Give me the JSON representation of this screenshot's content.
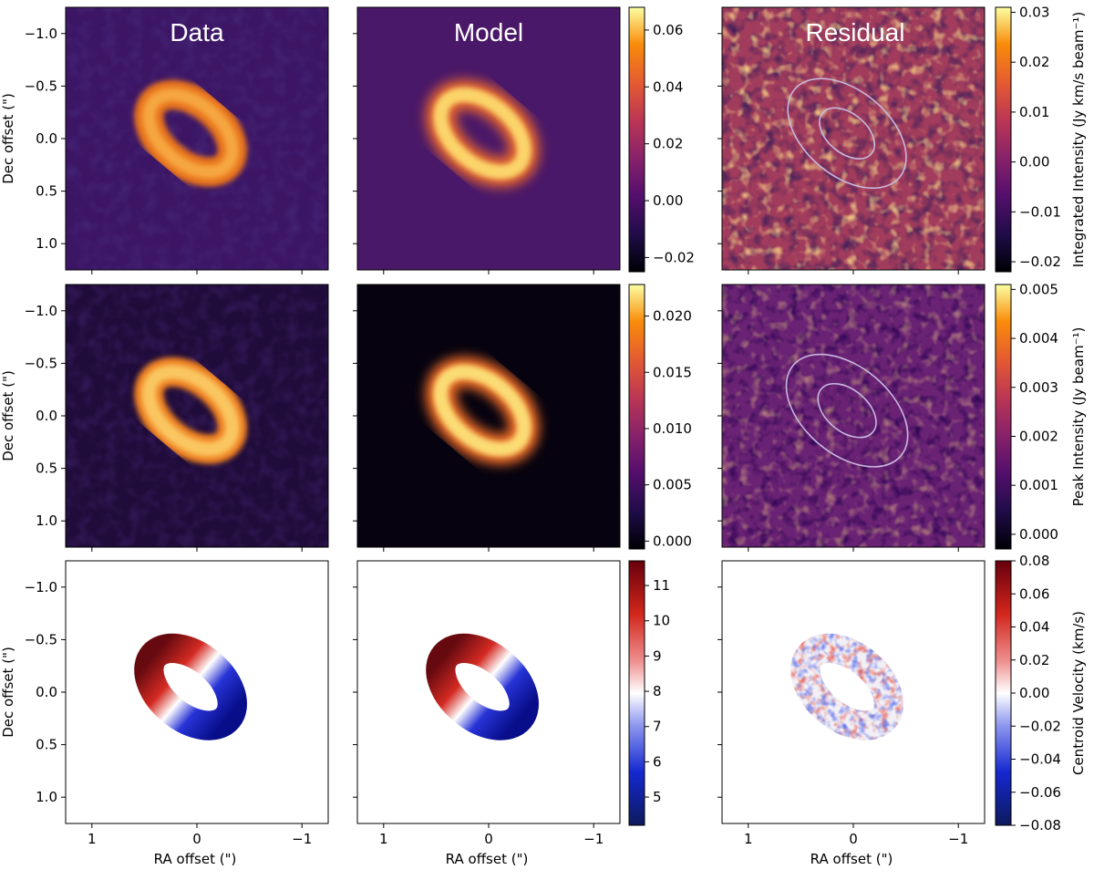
{
  "chart_data": {
    "type": "heatmap",
    "columns": [
      "Data",
      "Model",
      "Residual"
    ],
    "xlabel": "RA offset (\")",
    "ylabel": "Dec offset (\")",
    "xlim": [
      1.25,
      -1.25
    ],
    "ylim": [
      -1.25,
      1.25
    ],
    "xticks": [
      1,
      0,
      -1
    ],
    "xtick_labels": [
      "1",
      "0",
      "−1"
    ],
    "yticks": [
      -1.0,
      -0.5,
      0.0,
      0.5,
      1.0
    ],
    "ytick_labels": [
      "−1.0",
      "−0.5",
      "0.0",
      "0.5",
      "1.0"
    ],
    "ring": {
      "inclination_axis_ratio": 0.62,
      "position_angle_deg": 40,
      "inner_radius": 0.32,
      "outer_radius": 0.6
    },
    "rows": [
      {
        "quantity": "moment0",
        "colormap": "inferno",
        "shared_colorbar": {
          "min": -0.025,
          "max": 0.068,
          "ticks": [
            -0.02,
            0.0,
            0.02,
            0.04,
            0.06
          ],
          "tick_labels": [
            "−0.02",
            "0.00",
            "0.02",
            "0.04",
            "0.06"
          ]
        },
        "residual_colorbar": {
          "label": "Integrated Intensity (Jy km/s beam⁻¹)",
          "min": -0.022,
          "max": 0.031,
          "ticks": [
            -0.02,
            -0.01,
            0.0,
            0.01,
            0.02,
            0.03
          ],
          "tick_labels": [
            "−0.02",
            "−0.01",
            "0.00",
            "0.01",
            "0.02",
            "0.03"
          ]
        }
      },
      {
        "quantity": "peak_intensity",
        "colormap": "inferno",
        "shared_colorbar": {
          "min": -0.0007,
          "max": 0.0228,
          "ticks": [
            0.0,
            0.005,
            0.01,
            0.015,
            0.02
          ],
          "tick_labels": [
            "0.000",
            "0.005",
            "0.010",
            "0.015",
            "0.020"
          ]
        },
        "residual_colorbar": {
          "label": "Peak Intensity (Jy beam⁻¹)",
          "min": -0.0003,
          "max": 0.0051,
          "ticks": [
            0.0,
            0.001,
            0.002,
            0.003,
            0.004,
            0.005
          ],
          "tick_labels": [
            "0.000",
            "0.001",
            "0.002",
            "0.003",
            "0.004",
            "0.005"
          ]
        }
      },
      {
        "quantity": "centroid_velocity",
        "colormap": "RdBu_r",
        "shared_colorbar": {
          "min": 4.2,
          "max": 11.7,
          "ticks": [
            5,
            6,
            7,
            8,
            9,
            10,
            11
          ],
          "tick_labels": [
            "5",
            "6",
            "7",
            "8",
            "9",
            "10",
            "11"
          ]
        },
        "residual_colorbar": {
          "label": "Centroid Velocity (km/s)",
          "min": -0.08,
          "max": 0.08,
          "ticks": [
            -0.08,
            -0.06,
            -0.04,
            -0.02,
            0.0,
            0.02,
            0.04,
            0.06,
            0.08
          ],
          "tick_labels": [
            "−0.08",
            "−0.06",
            "−0.04",
            "−0.02",
            "0.00",
            "0.02",
            "0.04",
            "0.06",
            "0.08"
          ]
        }
      }
    ]
  }
}
